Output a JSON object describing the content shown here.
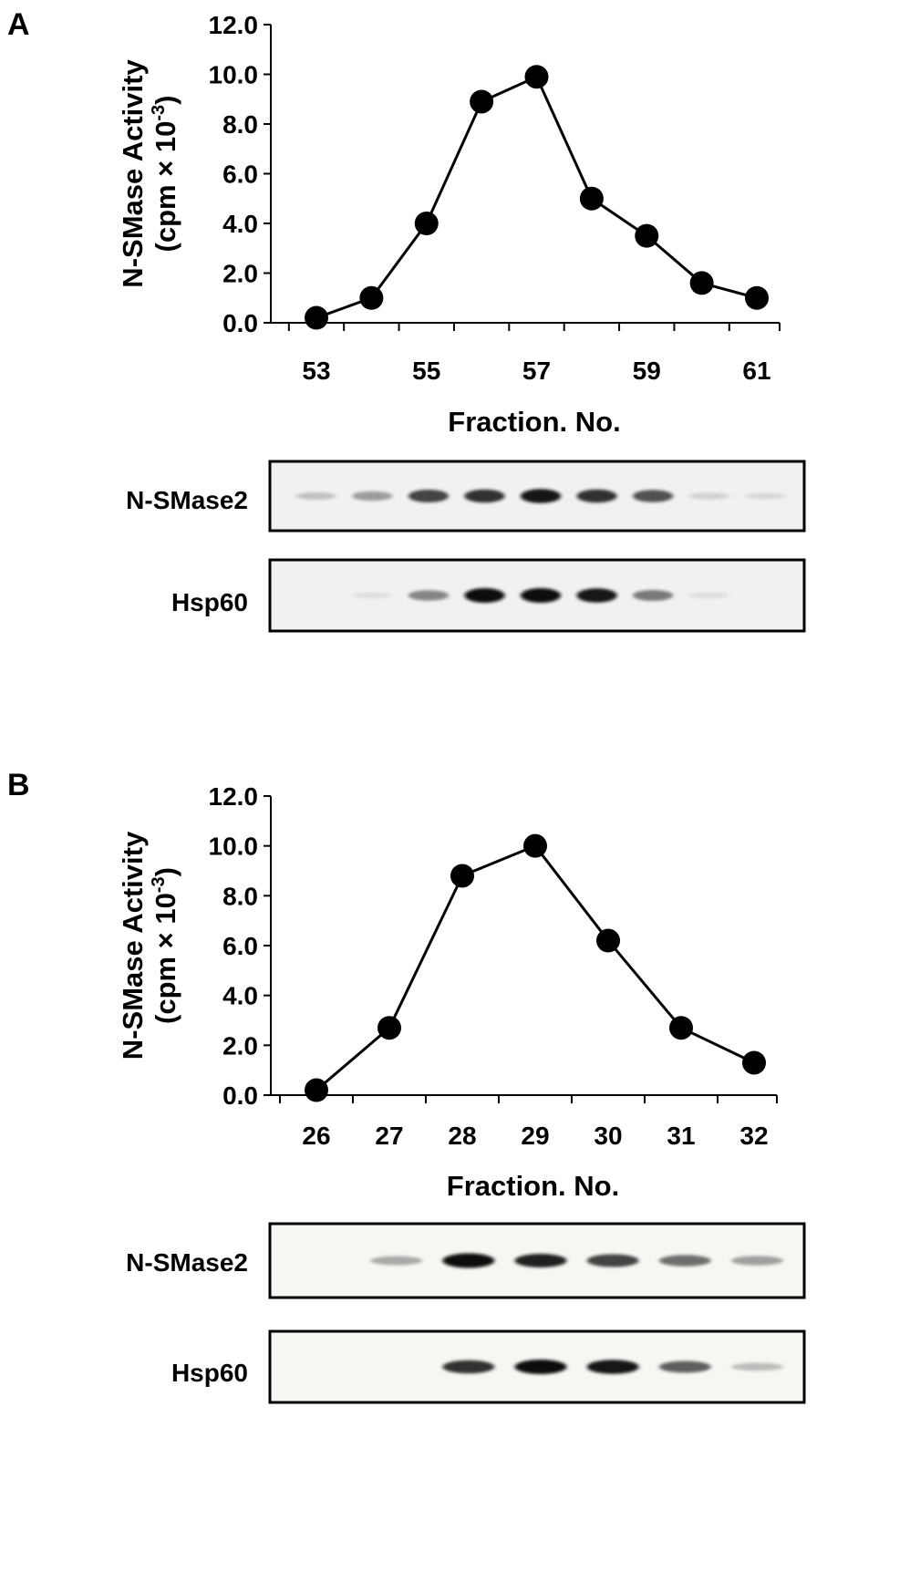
{
  "colors": {
    "ink": "#000000",
    "blot_bg_a": "#f1f1f1",
    "blot_bg_b": "#f7f7f2"
  },
  "chart_data": [
    {
      "type": "line",
      "panel_label": "A",
      "ylabel_line1": "N-SMase Activity",
      "ylabel_line2_prefix": "(cpm × 10",
      "ylabel_line2_exp": "-3",
      "ylabel_line2_suffix": ")",
      "xlabel": "Fraction. No.",
      "ylim": [
        0,
        12
      ],
      "yticks": [
        "0.0",
        "2.0",
        "4.0",
        "6.0",
        "8.0",
        "10.0",
        "12.0"
      ],
      "xlim": [
        53,
        61
      ],
      "xtick_labels": [
        "53",
        "55",
        "57",
        "59",
        "61"
      ],
      "x": [
        53,
        54,
        55,
        56,
        57,
        58,
        59,
        60,
        61
      ],
      "values": [
        0.2,
        1.0,
        4.0,
        8.9,
        9.9,
        5.0,
        3.5,
        1.6,
        1.0
      ],
      "marker": "filled-circle",
      "grid": false,
      "blots": [
        {
          "label": "N-SMase2",
          "band_intensity": [
            0.25,
            0.45,
            0.8,
            0.85,
            0.95,
            0.85,
            0.75,
            0.15,
            0.1
          ]
        },
        {
          "label": "Hsp60",
          "band_intensity": [
            0,
            0.05,
            0.55,
            1.0,
            1.0,
            0.95,
            0.6,
            0.05,
            0
          ]
        }
      ]
    },
    {
      "type": "line",
      "panel_label": "B",
      "ylabel_line1": "N-SMase Activity",
      "ylabel_line2_prefix": "(cpm × 10",
      "ylabel_line2_exp": "-3",
      "ylabel_line2_suffix": ")",
      "xlabel": "Fraction. No.",
      "ylim": [
        0,
        12
      ],
      "yticks": [
        "0.0",
        "2.0",
        "4.0",
        "6.0",
        "8.0",
        "10.0",
        "12.0"
      ],
      "xlim": [
        26,
        32
      ],
      "xtick_labels": [
        "26",
        "27",
        "28",
        "29",
        "30",
        "31",
        "32"
      ],
      "x": [
        26,
        27,
        28,
        29,
        30,
        31,
        32
      ],
      "values": [
        0.2,
        2.7,
        8.8,
        10.0,
        6.2,
        2.7,
        1.3
      ],
      "marker": "filled-circle",
      "grid": false,
      "blots": [
        {
          "label": "N-SMase2",
          "band_intensity": [
            0,
            0.4,
            1.0,
            0.9,
            0.8,
            0.65,
            0.45
          ]
        },
        {
          "label": "Hsp60",
          "band_intensity": [
            0,
            0,
            0.85,
            1.0,
            0.95,
            0.7,
            0.3
          ]
        }
      ]
    }
  ]
}
